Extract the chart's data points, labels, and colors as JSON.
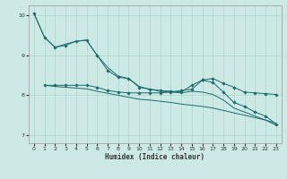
{
  "xlabel": "Humidex (Indice chaleur)",
  "bg_color": "#cce9e5",
  "grid_color": "#aed4cf",
  "line_color": "#1a6b6b",
  "xlim": [
    -0.5,
    23.5
  ],
  "ylim": [
    6.8,
    10.25
  ],
  "yticks": [
    7,
    8,
    9,
    10
  ],
  "xticks": [
    0,
    1,
    2,
    3,
    4,
    5,
    6,
    7,
    8,
    9,
    10,
    11,
    12,
    13,
    14,
    15,
    16,
    17,
    18,
    19,
    20,
    21,
    22,
    23
  ],
  "line1_x": [
    0,
    1,
    2,
    3,
    4,
    5,
    6,
    7,
    8,
    9,
    10,
    11,
    12,
    13,
    14,
    15,
    16,
    17,
    18,
    19,
    20,
    21,
    22,
    23
  ],
  "line1_y": [
    10.05,
    9.45,
    9.2,
    9.25,
    9.35,
    9.38,
    9.0,
    8.62,
    8.45,
    8.42,
    8.2,
    8.15,
    8.12,
    8.1,
    8.08,
    8.25,
    8.38,
    8.32,
    8.08,
    7.82,
    7.72,
    7.58,
    7.48,
    7.28
  ],
  "line2_x": [
    1,
    2,
    3,
    4,
    5,
    6,
    7,
    8,
    9,
    10,
    11,
    12,
    13,
    14,
    15,
    16,
    17,
    18,
    19,
    20,
    21,
    22,
    23
  ],
  "line2_y": [
    8.25,
    8.25,
    8.25,
    8.25,
    8.25,
    8.2,
    8.12,
    8.08,
    8.06,
    8.06,
    8.06,
    8.06,
    8.08,
    8.12,
    8.15,
    8.38,
    8.42,
    8.3,
    8.2,
    8.08,
    8.06,
    8.04,
    8.02
  ],
  "line3_x": [
    0,
    1,
    2,
    3,
    4,
    5,
    6,
    7,
    8,
    9,
    10,
    11,
    12,
    13,
    14,
    15,
    16,
    17,
    18,
    19,
    20,
    21,
    22,
    23
  ],
  "line3_y": [
    10.05,
    9.45,
    9.2,
    9.28,
    9.35,
    9.38,
    9.0,
    8.7,
    8.48,
    8.42,
    8.22,
    8.15,
    8.1,
    8.08,
    8.06,
    8.1,
    8.08,
    8.02,
    7.88,
    7.68,
    7.58,
    7.48,
    7.38,
    7.25
  ],
  "line4_x": [
    1,
    2,
    3,
    4,
    5,
    6,
    7,
    8,
    9,
    10,
    11,
    12,
    13,
    14,
    15,
    16,
    17,
    18,
    19,
    20,
    21,
    22,
    23
  ],
  "line4_y": [
    8.25,
    8.22,
    8.2,
    8.18,
    8.16,
    8.1,
    8.05,
    8.0,
    7.95,
    7.9,
    7.88,
    7.85,
    7.82,
    7.78,
    7.75,
    7.72,
    7.68,
    7.62,
    7.56,
    7.5,
    7.44,
    7.38,
    7.3
  ]
}
